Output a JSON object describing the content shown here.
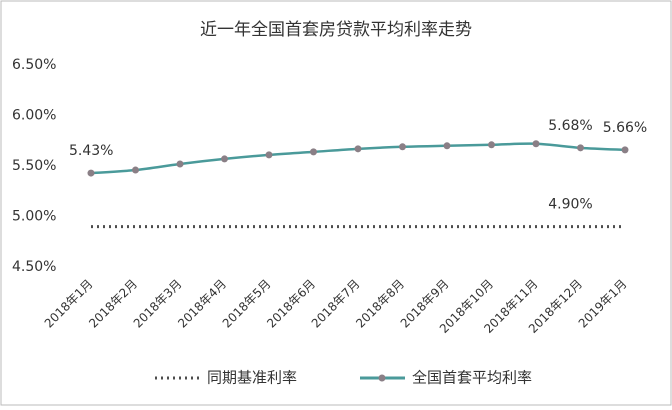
{
  "chart_data": {
    "type": "line",
    "title": "近一年全国首套房贷款平均利率走势",
    "categories": [
      "2018年1月",
      "2018年2月",
      "2018年3月",
      "2018年4月",
      "2018年5月",
      "2018年6月",
      "2018年7月",
      "2018年8月",
      "2018年9月",
      "2018年10月",
      "2018年11月",
      "2018年12月",
      "2019年1月"
    ],
    "series": [
      {
        "name": "同期基准利率",
        "color": "#4d4d4d",
        "style": "dotted",
        "values": [
          4.9,
          4.9,
          4.9,
          4.9,
          4.9,
          4.9,
          4.9,
          4.9,
          4.9,
          4.9,
          4.9,
          4.9,
          4.9
        ],
        "value_labels": [
          null,
          null,
          null,
          null,
          null,
          null,
          null,
          null,
          null,
          null,
          null,
          "4.90%",
          null
        ]
      },
      {
        "name": "全国首套平均利率",
        "color": "#4a9a9a",
        "style": "solid",
        "marker_color": "#8a7f86",
        "values": [
          5.43,
          5.46,
          5.52,
          5.57,
          5.61,
          5.64,
          5.67,
          5.69,
          5.7,
          5.71,
          5.72,
          5.68,
          5.66
        ],
        "value_labels": [
          "5.43%",
          null,
          null,
          null,
          null,
          null,
          null,
          null,
          null,
          null,
          null,
          "5.68%",
          "5.66%"
        ]
      }
    ],
    "ylim": [
      4.5,
      6.5
    ],
    "yticks": [
      {
        "value": 4.5,
        "label": "4.50%"
      },
      {
        "value": 5.0,
        "label": "5.00%"
      },
      {
        "value": 5.5,
        "label": "5.50%"
      },
      {
        "value": 6.0,
        "label": "6.00%"
      },
      {
        "value": 6.5,
        "label": "6.50%"
      }
    ],
    "grid": false
  }
}
